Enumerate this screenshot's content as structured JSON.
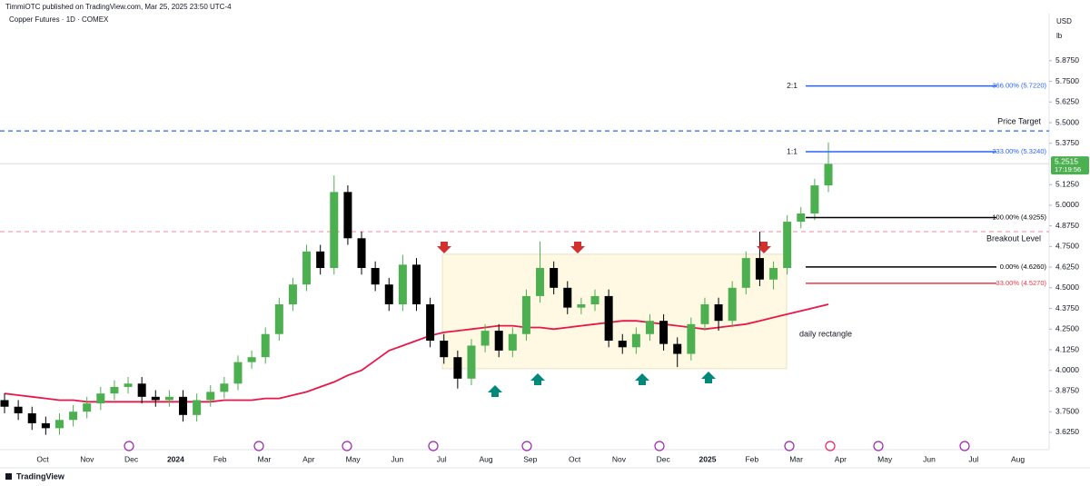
{
  "header": {
    "publisher": "TimmiOTC published on TradingView.com, Mar 25, 2025 23:50 UTC-4",
    "symbol": "Copper Futures · 1D · COMEX",
    "currency": "USD",
    "unit": "lb"
  },
  "footer": {
    "brand": "TradingView"
  },
  "chart_data": {
    "type": "candlestick",
    "categories": [
      "Oct",
      "Nov",
      "Dec",
      "2024",
      "Feb",
      "Mar",
      "Apr",
      "May",
      "Jun",
      "Jul",
      "Aug",
      "Sep",
      "Oct",
      "Nov",
      "Dec",
      "2025",
      "Feb",
      "Mar",
      "Apr",
      "May",
      "Jun",
      "Jul",
      "Aug"
    ],
    "open": [
      3.82,
      3.78,
      3.74,
      3.68,
      3.65,
      3.7,
      3.75,
      3.8,
      3.86,
      3.9,
      3.92,
      3.84,
      3.82,
      3.84,
      3.73,
      3.82,
      3.87,
      3.92,
      4.05,
      4.08,
      4.22,
      4.4,
      4.52,
      4.72,
      4.62,
      5.08,
      4.8,
      4.62,
      4.52,
      4.4,
      4.64,
      4.4,
      4.18,
      4.08,
      3.95,
      4.15,
      4.24,
      4.12,
      4.22,
      4.45,
      4.62,
      4.5,
      4.38,
      4.4,
      4.45,
      4.18,
      4.14,
      4.22,
      4.3,
      4.16,
      4.1,
      4.28,
      4.4,
      4.3,
      4.5,
      4.68,
      4.55,
      4.62,
      4.9,
      4.95,
      5.12
    ],
    "high": [
      3.86,
      3.82,
      3.78,
      3.72,
      3.74,
      3.79,
      3.84,
      3.9,
      3.94,
      3.96,
      3.96,
      3.88,
      3.88,
      3.88,
      3.86,
      3.91,
      3.96,
      4.09,
      4.12,
      4.26,
      4.44,
      4.56,
      4.76,
      4.76,
      5.18,
      5.12,
      4.84,
      4.66,
      4.56,
      4.7,
      4.68,
      4.44,
      4.22,
      4.12,
      4.19,
      4.28,
      4.28,
      4.26,
      4.49,
      4.78,
      4.66,
      4.54,
      4.44,
      4.49,
      4.49,
      4.22,
      4.26,
      4.34,
      4.34,
      4.2,
      4.32,
      4.44,
      4.44,
      4.54,
      4.72,
      4.84,
      4.66,
      4.94,
      4.99,
      5.16,
      5.38
    ],
    "low": [
      3.74,
      3.7,
      3.64,
      3.61,
      3.61,
      3.66,
      3.71,
      3.76,
      3.82,
      3.86,
      3.8,
      3.78,
      3.78,
      3.69,
      3.69,
      3.78,
      3.83,
      3.88,
      4.01,
      4.04,
      4.18,
      4.36,
      4.48,
      4.58,
      4.58,
      4.76,
      4.58,
      4.48,
      4.36,
      4.36,
      4.36,
      4.14,
      4.04,
      3.89,
      3.91,
      4.11,
      4.08,
      4.08,
      4.18,
      4.41,
      4.46,
      4.34,
      4.34,
      4.36,
      4.14,
      4.1,
      4.1,
      4.18,
      4.12,
      4.02,
      4.06,
      4.24,
      4.24,
      4.26,
      4.46,
      4.51,
      4.49,
      4.58,
      4.86,
      4.91,
      5.08
    ],
    "close": [
      3.78,
      3.74,
      3.68,
      3.65,
      3.7,
      3.75,
      3.8,
      3.86,
      3.9,
      3.92,
      3.84,
      3.82,
      3.84,
      3.73,
      3.82,
      3.87,
      3.92,
      4.05,
      4.08,
      4.22,
      4.4,
      4.52,
      4.72,
      4.62,
      5.08,
      4.8,
      4.62,
      4.52,
      4.4,
      4.64,
      4.4,
      4.18,
      4.08,
      3.95,
      4.15,
      4.24,
      4.12,
      4.22,
      4.45,
      4.62,
      4.5,
      4.38,
      4.4,
      4.45,
      4.18,
      4.14,
      4.22,
      4.3,
      4.16,
      4.1,
      4.28,
      4.4,
      4.3,
      4.5,
      4.68,
      4.55,
      4.62,
      4.9,
      4.95,
      5.12,
      5.25
    ],
    "up_color": "#4caf50",
    "down_color": "#000000",
    "ma_values": [
      3.86,
      3.85,
      3.84,
      3.83,
      3.82,
      3.82,
      3.81,
      3.81,
      3.81,
      3.81,
      3.81,
      3.81,
      3.81,
      3.81,
      3.81,
      3.81,
      3.82,
      3.82,
      3.82,
      3.83,
      3.83,
      3.85,
      3.87,
      3.9,
      3.93,
      3.97,
      4.0,
      4.06,
      4.12,
      4.15,
      4.18,
      4.21,
      4.23,
      4.24,
      4.25,
      4.26,
      4.27,
      4.27,
      4.26,
      4.26,
      4.25,
      4.26,
      4.27,
      4.28,
      4.29,
      4.3,
      4.3,
      4.29,
      4.28,
      4.27,
      4.26,
      4.25,
      4.26,
      4.27,
      4.28,
      4.3,
      4.32,
      4.34,
      4.36,
      4.38,
      4.4
    ],
    "ma_color": "#e8174a",
    "ylim": [
      3.52,
      6.16
    ],
    "yticks": [
      {
        "value": 3.625,
        "label": "3.6250"
      },
      {
        "value": 3.75,
        "label": "3.7500"
      },
      {
        "value": 3.875,
        "label": "3.8750"
      },
      {
        "value": 4,
        "label": "4.0000"
      },
      {
        "value": 4.125,
        "label": "4.1250"
      },
      {
        "value": 4.25,
        "label": "4.2500"
      },
      {
        "value": 4.375,
        "label": "4.3750"
      },
      {
        "value": 4.5,
        "label": "4.5000"
      },
      {
        "value": 4.625,
        "label": "4.6250"
      },
      {
        "value": 4.75,
        "label": "4.7500"
      },
      {
        "value": 4.875,
        "label": "4.8750"
      },
      {
        "value": 5,
        "label": "5.0000"
      },
      {
        "value": 5.125,
        "label": "5.1250"
      },
      {
        "value": 5.375,
        "label": "5.3750"
      },
      {
        "value": 5.5,
        "label": "5.5000"
      },
      {
        "value": 5.625,
        "label": "5.6250"
      },
      {
        "value": 5.75,
        "label": "5.7500"
      },
      {
        "value": 5.875,
        "label": "5.8750"
      }
    ],
    "last_price": {
      "value": 5.2515,
      "countdown": "17:19:56",
      "color": "#4caf50"
    },
    "levels": [
      {
        "label": "Price Target",
        "value": 5.45,
        "color": "#2962ff"
      },
      {
        "label": "Breakout Level",
        "value": 4.84,
        "color": "#f7a1b0"
      }
    ],
    "fib": [
      {
        "ratio": "2:1",
        "label": "366.00% (5.7220)",
        "value": 5.722,
        "color": "#2962ff"
      },
      {
        "ratio": "1:1",
        "label": "233.00% (5.3240)",
        "value": 5.324,
        "color": "#2962ff"
      },
      {
        "label": "100.00% (4.9255)",
        "value": 4.9255,
        "color": "#000000"
      },
      {
        "label": "0.00% (4.6260)",
        "value": 4.626,
        "color": "#000000"
      },
      {
        "label": "-33.00% (4.5270)",
        "value": 4.527,
        "color": "#f23645"
      }
    ],
    "rectangle": {
      "label": "daily rectangle",
      "top": 4.703,
      "bottom": 4.01
    }
  }
}
